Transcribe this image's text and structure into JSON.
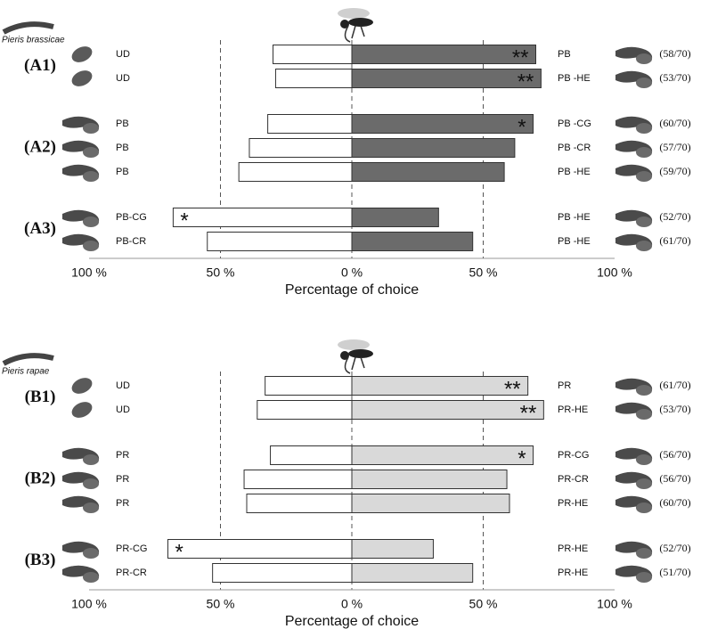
{
  "chart_data": [
    {
      "type": "diverging_bar",
      "species": "Pieris brassicae",
      "xlabel": "Percentage of choice",
      "xlim": [
        -100,
        100
      ],
      "xticks": [
        {
          "value": -100,
          "label": "100 %"
        },
        {
          "value": -50,
          "label": "50 %"
        },
        {
          "value": 0,
          "label": "0 %"
        },
        {
          "value": 50,
          "label": "50 %"
        },
        {
          "value": 100,
          "label": "100 %"
        }
      ],
      "left_color": "#ffffff",
      "right_color": "#6b6b6b",
      "groups": [
        {
          "label": "(A1)",
          "rows": [
            {
              "left": "UD",
              "right": "PB",
              "left_value": -30,
              "right_value": 70,
              "right_sig": "**",
              "count": "(58/70)"
            },
            {
              "left": "UD",
              "right": "PB -HE",
              "left_value": -29,
              "right_value": 72,
              "right_sig": "**",
              "count": "(53/70)"
            }
          ]
        },
        {
          "label": "(A2)",
          "rows": [
            {
              "left": "PB",
              "right": "PB -CG",
              "left_value": -32,
              "right_value": 69,
              "right_sig": "*",
              "count": "(60/70)"
            },
            {
              "left": "PB",
              "right": "PB -CR",
              "left_value": -39,
              "right_value": 62,
              "count": "(57/70)"
            },
            {
              "left": "PB",
              "right": "PB -HE",
              "left_value": -43,
              "right_value": 58,
              "count": "(59/70)"
            }
          ]
        },
        {
          "label": "(A3)",
          "rows": [
            {
              "left": "PB-CG",
              "right": "PB -HE",
              "left_value": -68,
              "right_value": 33,
              "left_sig": "*",
              "count": "(52/70)"
            },
            {
              "left": "PB-CR",
              "right": "PB -HE",
              "left_value": -55,
              "right_value": 46,
              "count": "(61/70)"
            }
          ]
        }
      ]
    },
    {
      "type": "diverging_bar",
      "species": "Pieris rapae",
      "xlabel": "Percentage of choice",
      "xlim": [
        -100,
        100
      ],
      "xticks": [
        {
          "value": -100,
          "label": "100 %"
        },
        {
          "value": -50,
          "label": "50 %"
        },
        {
          "value": 0,
          "label": "0 %"
        },
        {
          "value": 50,
          "label": "50 %"
        },
        {
          "value": 100,
          "label": "100 %"
        }
      ],
      "left_color": "#ffffff",
      "right_color": "#d9d9d9",
      "groups": [
        {
          "label": "(B1)",
          "rows": [
            {
              "left": "UD",
              "right": "PR",
              "left_value": -33,
              "right_value": 67,
              "right_sig": "**",
              "count": "(61/70)"
            },
            {
              "left": "UD",
              "right": "PR-HE",
              "left_value": -36,
              "right_value": 73,
              "right_sig": "**",
              "count": "(53/70)"
            }
          ]
        },
        {
          "label": "(B2)",
          "rows": [
            {
              "left": "PR",
              "right": "PR-CG",
              "left_value": -31,
              "right_value": 69,
              "right_sig": "*",
              "count": "(56/70)"
            },
            {
              "left": "PR",
              "right": "PR-CR",
              "left_value": -41,
              "right_value": 59,
              "count": "(56/70)"
            },
            {
              "left": "PR",
              "right": "PR-HE",
              "left_value": -40,
              "right_value": 60,
              "count": "(60/70)"
            }
          ]
        },
        {
          "label": "(B3)",
          "rows": [
            {
              "left": "PR-CG",
              "right": "PR-HE",
              "left_value": -70,
              "right_value": 31,
              "left_sig": "*",
              "count": "(52/70)"
            },
            {
              "left": "PR-CR",
              "right": "PR-HE",
              "left_value": -53,
              "right_value": 46,
              "count": "(51/70)"
            }
          ]
        }
      ]
    }
  ]
}
